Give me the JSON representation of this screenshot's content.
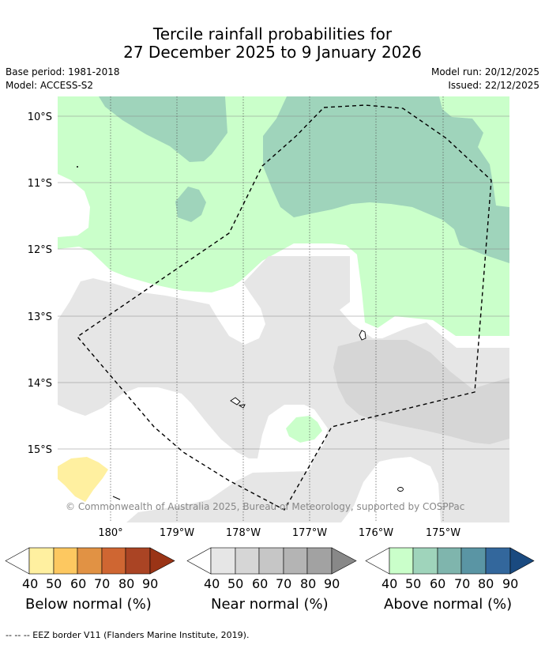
{
  "title": {
    "line1": "Tercile rainfall probabilities for",
    "line2": "27 December 2025 to 9 January 2026"
  },
  "meta": {
    "base_period": "Base period: 1981-2018",
    "model": "Model: ACCESS-S2",
    "model_run": "Model run: 20/12/2025",
    "issued": "Issued: 22/12/2025"
  },
  "map": {
    "lat_labels": [
      "10°S",
      "11°S",
      "12°S",
      "13°S",
      "14°S",
      "15°S"
    ],
    "lon_labels": [
      "180°",
      "179°W",
      "178°W",
      "177°W",
      "176°W",
      "175°W"
    ],
    "copyright": "© Commonwealth of Australia 2025, Bureau of Meteorology, supported by COSPPac"
  },
  "colorbars": {
    "ticks": [
      "40",
      "50",
      "60",
      "70",
      "80",
      "90"
    ],
    "below": {
      "title": "Below normal (%)",
      "colors": [
        "#fff0a0",
        "#fdc860",
        "#e19244",
        "#cf6632",
        "#aa4424",
        "#9a3416"
      ]
    },
    "near": {
      "title": "Near normal (%)",
      "colors": [
        "#e6e6e6",
        "#d6d6d6",
        "#c6c6c6",
        "#b4b4b4",
        "#a2a2a2",
        "#888888"
      ]
    },
    "above": {
      "title": "Above normal (%)",
      "colors": [
        "#caffca",
        "#9fd4bb",
        "#7fb5ad",
        "#5a95a4",
        "#33679c",
        "#1a4a80"
      ]
    }
  },
  "footnote": "--  --  -- EEZ border V11 (Flanders Marine Institute, 2019)."
}
